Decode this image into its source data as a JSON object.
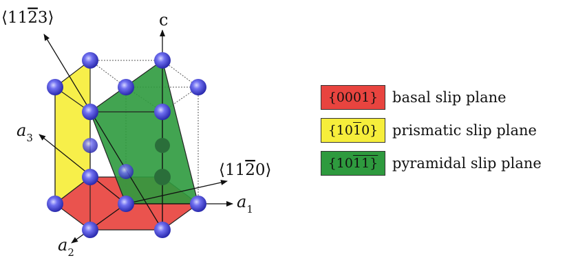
{
  "axes": {
    "c": "c",
    "a1": "a",
    "a1_sub": "1",
    "a2": "a",
    "a2_sub": "2",
    "a3": "a",
    "a3_sub": "3",
    "dir_1123": {
      "pre": "⟨11",
      "bar": "2",
      "post": "3⟩"
    },
    "dir_1120": {
      "pre": "⟨11",
      "bar": "2",
      "post": "0⟩"
    }
  },
  "legend": [
    {
      "id": "basal",
      "color": "#e8443f",
      "label": "basal slip plane",
      "index": {
        "pre": "{0001}",
        "bar": "",
        "mid": "",
        "bar2": "",
        "post": ""
      }
    },
    {
      "id": "prismatic",
      "color": "#f6ee3b",
      "label": "prismatic slip plane",
      "index": {
        "pre": "{10",
        "bar": "1",
        "mid": "0}",
        "bar2": "",
        "post": ""
      }
    },
    {
      "id": "pyramidal",
      "color": "#2e9a3e",
      "label": "pyramidal slip plane",
      "index": {
        "pre": "{10",
        "bar": "1",
        "mid": "1}",
        "bar2": "",
        "post": ""
      }
    }
  ],
  "colors": {
    "atom": "#3a3ac8",
    "basal": "#e8443f",
    "prismatic": "#f6ee3b",
    "pyramidal": "#2e9a3e"
  }
}
